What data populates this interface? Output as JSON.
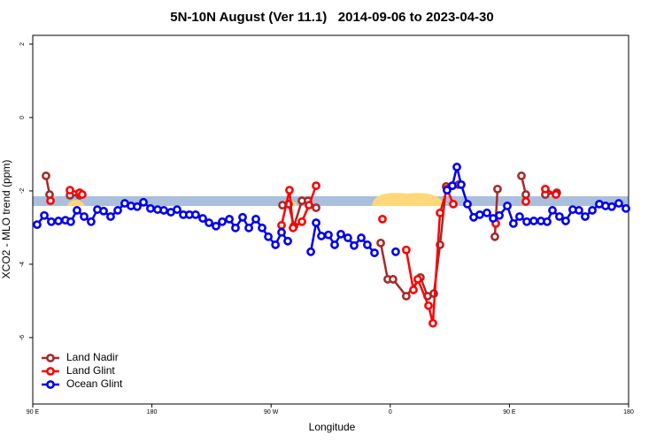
{
  "chart_data": {
    "type": "line",
    "title": "5N-10N August (Ver 11.1)   2014-09-06 to 2023-04-30",
    "x_label": "Longitude",
    "y_label": "XCO2 - MLO trend (ppm)",
    "xlim": [
      90,
      540
    ],
    "xticks": [
      {
        "value": 90,
        "label": "90 E"
      },
      180,
      {
        "value": 270,
        "label": "90 W"
      },
      {
        "value": 360,
        "label": "0"
      },
      {
        "value": 450,
        "label": "90 E"
      },
      {
        "value": 540,
        "label": "180"
      }
    ],
    "ylim": [
      -7.81,
      2.24
    ],
    "yticks": [
      2,
      0,
      -2,
      -4,
      -6
    ],
    "legend": "bottom-left",
    "series": [
      {
        "name": "Land Nadir",
        "color": "#a52a2a",
        "x": [
          100.0,
          102.7,
          118.1,
          125.4,
          278.6,
          283.2,
          287.3,
          293.3,
          297.9,
          304.0,
          352.8,
          358.1,
          362.1,
          372.1,
          382.8,
          388.2,
          392.9,
          397.6,
          402.2,
          406.9,
          411.6,
          439.0,
          441.0,
          459.1,
          462.4,
          477.1,
          485.8
        ],
        "values": [
          -1.59,
          -2.1,
          -2.12,
          -2.12,
          -2.39,
          -2.36,
          -2.96,
          -2.27,
          -2.27,
          -2.46,
          -3.42,
          -4.41,
          -4.41,
          -4.87,
          -4.36,
          -4.87,
          -4.8,
          -3.47,
          -1.88,
          -1.86,
          -1.83,
          -3.25,
          -1.95,
          -1.59,
          -2.1,
          -2.1,
          -2.05
        ]
      },
      {
        "name": "Land Glint",
        "color": "#ff0000",
        "x": [
          103.4,
          118.1,
          125.4,
          127.4,
          277.9,
          283.9,
          286.6,
          293.3,
          298.6,
          304.0,
          354.1,
          372.1,
          377.5,
          380.8,
          388.9,
          392.2,
          397.6,
          402.9,
          407.6,
          439.7,
          462.4,
          477.1,
          485.1
        ],
        "values": [
          -2.27,
          -1.98,
          -2.05,
          -2.1,
          -2.94,
          -1.98,
          -3.01,
          -2.84,
          -2.39,
          -1.86,
          -2.77,
          -3.61,
          -4.7,
          -4.41,
          -5.13,
          -5.61,
          -2.6,
          -1.95,
          -2.36,
          -2.89,
          -2.29,
          -1.95,
          -2.1
        ]
      },
      {
        "name": "Ocean Glint",
        "color": "#0000ee",
        "x": [
          93.3,
          98.7,
          104.0,
          109.4,
          114.7,
          118.7,
          123.4,
          128.8,
          134.1,
          138.8,
          143.5,
          148.8,
          154.2,
          159.5,
          164.2,
          168.9,
          173.6,
          178.9,
          184.3,
          189.0,
          194.3,
          199.0,
          203.7,
          208.3,
          213.0,
          218.4,
          223.1,
          228.4,
          233.1,
          238.5,
          243.1,
          248.5,
          253.2,
          258.5,
          263.2,
          267.9,
          273.3,
          277.9,
          282.6,
          300.0,
          304.0,
          308.0,
          313.3,
          318.0,
          322.7,
          328.0,
          332.7,
          338.1,
          342.7,
          348.1,
          364.1,
          402.9,
          406.9,
          410.3,
          413.6,
          418.3,
          423.0,
          427.6,
          433.0,
          437.7,
          442.4,
          448.4,
          453.0,
          457.7,
          463.1,
          468.4,
          473.8,
          478.5,
          482.5,
          487.8,
          492.5,
          497.8,
          502.5,
          507.2,
          512.6,
          517.9,
          522.6,
          527.3,
          532.6,
          538.0
        ],
        "values": [
          -2.92,
          -2.67,
          -2.84,
          -2.82,
          -2.8,
          -2.84,
          -2.53,
          -2.7,
          -2.84,
          -2.51,
          -2.55,
          -2.7,
          -2.53,
          -2.34,
          -2.41,
          -2.43,
          -2.31,
          -2.48,
          -2.51,
          -2.53,
          -2.58,
          -2.51,
          -2.65,
          -2.65,
          -2.65,
          -2.75,
          -2.87,
          -2.96,
          -2.84,
          -2.77,
          -3.01,
          -2.72,
          -3.01,
          -2.77,
          -3.01,
          -3.25,
          -3.47,
          -3.13,
          -3.37,
          -3.66,
          -2.87,
          -3.23,
          -3.2,
          -3.47,
          -3.18,
          -3.28,
          -3.49,
          -3.28,
          -3.47,
          -3.69,
          -3.66,
          -1.98,
          -1.86,
          -1.35,
          -1.83,
          -2.36,
          -2.72,
          -2.65,
          -2.6,
          -2.75,
          -2.67,
          -2.41,
          -2.89,
          -2.7,
          -2.84,
          -2.82,
          -2.82,
          -2.84,
          -2.53,
          -2.7,
          -2.82,
          -2.51,
          -2.53,
          -2.7,
          -2.53,
          -2.36,
          -2.41,
          -2.43,
          -2.34,
          -2.48
        ]
      }
    ]
  }
}
